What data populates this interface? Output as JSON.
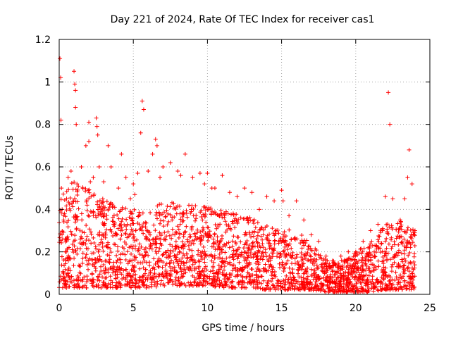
{
  "chart_data": {
    "type": "scatter",
    "title": "Day 221 of 2024, Rate Of TEC Index for receiver cas1",
    "xlabel": "GPS time / hours",
    "ylabel": "ROTI / TECUs",
    "xlim": [
      0,
      25
    ],
    "ylim": [
      0,
      1.2
    ],
    "xticks": [
      0,
      5,
      10,
      15,
      20,
      25
    ],
    "yticks": [
      0,
      0.2,
      0.4,
      0.6,
      0.8,
      1,
      1.2
    ],
    "xtick_labels": [
      "0",
      "5",
      "10",
      "15",
      "20",
      "25"
    ],
    "ytick_labels": [
      "0",
      "0.2",
      "0.4",
      "0.6",
      "0.8",
      "1",
      "1.2"
    ],
    "grid": true,
    "marker": "+",
    "color": "#ff0000",
    "x": [
      0.05,
      0.1,
      0.12,
      0.15,
      0.2,
      0.3,
      0.5,
      0.6,
      0.8,
      1.0,
      1.05,
      1.1,
      1.1,
      1.15,
      1.2,
      1.5,
      1.8,
      2.0,
      2.0,
      2.1,
      2.3,
      2.5,
      2.55,
      2.6,
      2.7,
      3.0,
      3.3,
      3.5,
      4.0,
      4.2,
      4.5,
      4.8,
      5.0,
      5.1,
      5.3,
      5.5,
      5.6,
      5.7,
      6.0,
      6.3,
      6.5,
      6.6,
      6.8,
      7.0,
      7.5,
      8.0,
      8.2,
      8.5,
      9.0,
      9.5,
      9.8,
      10.0,
      10.3,
      10.5,
      11.0,
      11.5,
      12.0,
      12.5,
      13.0,
      13.5,
      14.0,
      14.5,
      15.0,
      15.1,
      15.5,
      16.0,
      16.5,
      17.0,
      17.5,
      18.0,
      18.5,
      19.0,
      19.5,
      20.0,
      20.5,
      21.0,
      21.5,
      22.0,
      22.2,
      22.3,
      22.5,
      23.0,
      23.3,
      23.5,
      23.6,
      23.8,
      24.0
    ],
    "y": [
      1.11,
      1.02,
      0.82,
      0.5,
      0.4,
      0.35,
      0.45,
      0.55,
      0.58,
      1.05,
      0.99,
      0.96,
      0.88,
      0.8,
      0.52,
      0.6,
      0.7,
      0.81,
      0.72,
      0.53,
      0.55,
      0.83,
      0.79,
      0.75,
      0.6,
      0.53,
      0.7,
      0.6,
      0.5,
      0.66,
      0.55,
      0.45,
      0.52,
      0.47,
      0.57,
      0.76,
      0.91,
      0.87,
      0.58,
      0.66,
      0.73,
      0.7,
      0.55,
      0.6,
      0.62,
      0.58,
      0.56,
      0.66,
      0.55,
      0.57,
      0.52,
      0.57,
      0.5,
      0.5,
      0.56,
      0.48,
      0.46,
      0.5,
      0.48,
      0.4,
      0.46,
      0.44,
      0.49,
      0.44,
      0.37,
      0.44,
      0.35,
      0.28,
      0.25,
      0.18,
      0.15,
      0.18,
      0.2,
      0.2,
      0.25,
      0.3,
      0.33,
      0.46,
      0.95,
      0.8,
      0.45,
      0.35,
      0.45,
      0.55,
      0.68,
      0.52,
      0.3
    ],
    "envelope": {
      "x": [
        0,
        1,
        2,
        3,
        4,
        5,
        6,
        7,
        8,
        9,
        10,
        11,
        12,
        13,
        14,
        15,
        16,
        17,
        18,
        19,
        20,
        21,
        22,
        23,
        24
      ],
      "upper": [
        0.45,
        0.55,
        0.5,
        0.45,
        0.42,
        0.4,
        0.38,
        0.45,
        0.42,
        0.42,
        0.42,
        0.4,
        0.38,
        0.36,
        0.34,
        0.32,
        0.3,
        0.24,
        0.16,
        0.16,
        0.2,
        0.25,
        0.33,
        0.35,
        0.3
      ],
      "lower": [
        0.03,
        0.03,
        0.03,
        0.03,
        0.03,
        0.03,
        0.03,
        0.04,
        0.04,
        0.04,
        0.04,
        0.03,
        0.03,
        0.03,
        0.02,
        0.02,
        0.02,
        0.02,
        0.01,
        0.01,
        0.01,
        0.01,
        0.02,
        0.02,
        0.02
      ]
    }
  }
}
